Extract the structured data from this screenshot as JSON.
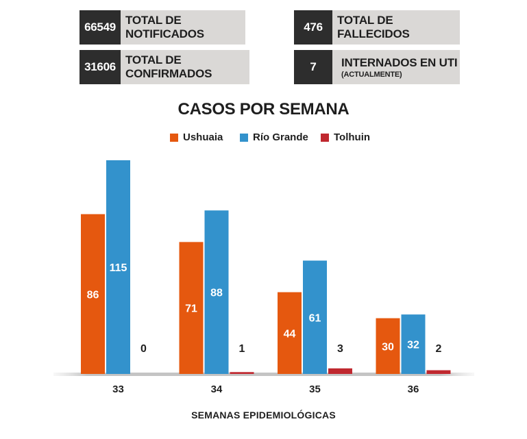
{
  "stats": [
    {
      "value": "66549",
      "label": "TOTAL DE NOTIFICADOS",
      "sublabel": ""
    },
    {
      "value": "31606",
      "label": "TOTAL DE CONFIRMADOS",
      "sublabel": ""
    },
    {
      "value": "476",
      "label": "TOTAL DE FALLECIDOS",
      "sublabel": ""
    },
    {
      "value": "7",
      "label": "INTERNADOS EN UTI",
      "sublabel": "(ACTUALMENTE)"
    }
  ],
  "chart_data": {
    "type": "bar",
    "title": "CASOS POR SEMANA",
    "xlabel": "SEMANAS EPIDEMIOLÓGICAS",
    "ylabel": "",
    "categories": [
      "33",
      "34",
      "35",
      "36"
    ],
    "series": [
      {
        "name": "Ushuaia",
        "color": "#e5580f",
        "values": [
          86,
          71,
          44,
          30
        ]
      },
      {
        "name": "Río Grande",
        "color": "#3392cc",
        "values": [
          115,
          88,
          61,
          32
        ]
      },
      {
        "name": "Tolhuin",
        "color": "#c0282f",
        "values": [
          0,
          1,
          3,
          2
        ]
      }
    ],
    "ylim": [
      0,
      115
    ],
    "grid": false,
    "legend_position": "top-center"
  }
}
